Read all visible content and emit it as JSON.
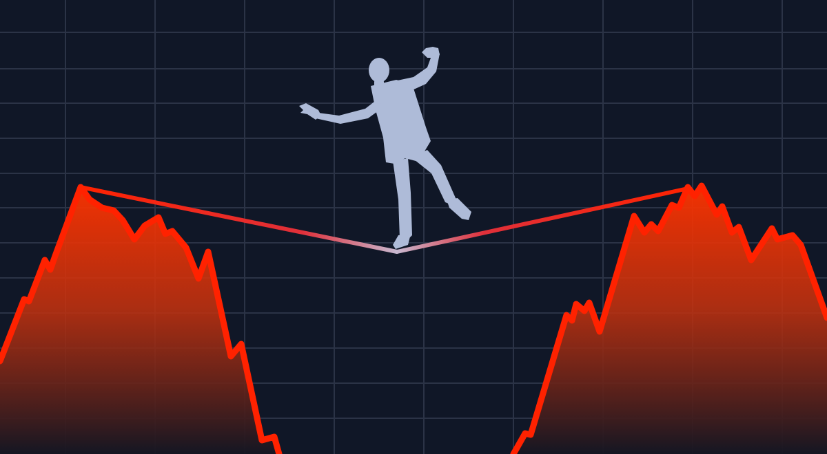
{
  "scene": {
    "description_free": true,
    "colors": {
      "background": "#101727",
      "grid": "#2a3244",
      "line": "#ff2200",
      "rope_highlight": "#c9b6c8",
      "silhouette": "#aebbd9"
    },
    "elements": {
      "grid": "grid-lines",
      "left_area": "left-falling-chart",
      "right_area": "right-rising-chart",
      "rope": "tightrope-line",
      "figure": "tightrope-walker-silhouette"
    }
  }
}
